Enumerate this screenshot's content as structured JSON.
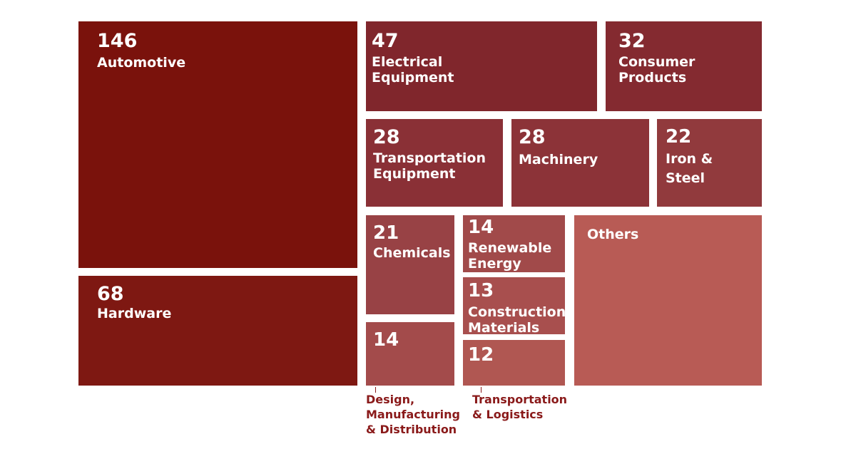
{
  "chart_data": {
    "type": "treemap",
    "items": [
      {
        "label": "Automotive",
        "value": 146,
        "color": "#7a120c"
      },
      {
        "label": "Hardware",
        "value": 68,
        "color": "#7e1812"
      },
      {
        "label": "Electrical\nEquipment",
        "value": 47,
        "color": "#80262c"
      },
      {
        "label": "Consumer\nProducts",
        "value": 32,
        "color": "#842a30"
      },
      {
        "label": "Transportation\nEquipment",
        "value": 28,
        "color": "#8a3036"
      },
      {
        "label": "Machinery",
        "value": 28,
        "color": "#8c3338"
      },
      {
        "label": "Iron &\nSteel",
        "value": 22,
        "color": "#913a3d"
      },
      {
        "label": "Chemicals",
        "value": 21,
        "color": "#984245"
      },
      {
        "label": "Renewable\nEnergy",
        "value": 14,
        "color": "#a14a4a"
      },
      {
        "label": "Construction\nMaterials",
        "value": 13,
        "color": "#a84f4e"
      },
      {
        "label": "Design,\nManufacturing\n& Distribution",
        "value": 14,
        "color": "#a34b4b"
      },
      {
        "label": "Transportation\n& Logistics",
        "value": 12,
        "color": "#b05752"
      },
      {
        "label": "Others",
        "value": null,
        "color": "#b85b55"
      }
    ]
  }
}
